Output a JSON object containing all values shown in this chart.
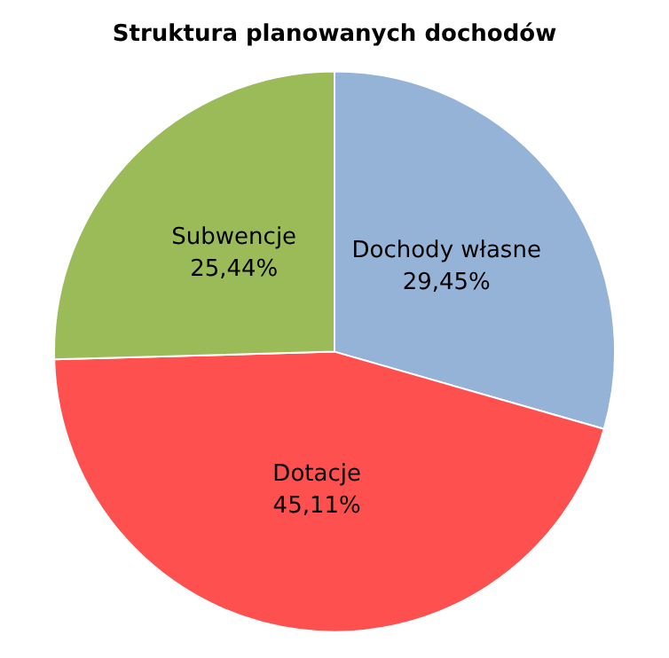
{
  "chart_data": {
    "type": "pie",
    "title": "Struktura planowanych dochodów",
    "categories": [
      "Dochody własne",
      "Dotacje",
      "Subwencje"
    ],
    "values": [
      29.45,
      45.11,
      25.44
    ],
    "value_labels": [
      "29,45%",
      "45,11%",
      "25,44%"
    ],
    "colors": [
      "#95b3d7",
      "#ff5050",
      "#9bbb59"
    ],
    "legend": false
  }
}
